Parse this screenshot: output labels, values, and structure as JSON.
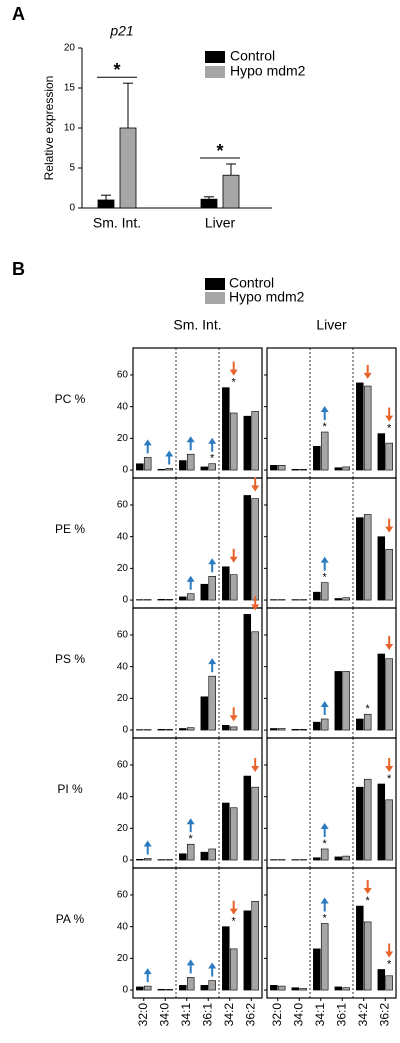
{
  "panel_labels": [
    "A",
    "B"
  ],
  "chart_data": [
    {
      "type": "bar",
      "title": "p21",
      "ylabel": "Relative expression",
      "categories": [
        "Sm. Int.",
        "Liver"
      ],
      "series": [
        {
          "name": "Control",
          "color": "#000000",
          "values": [
            1.0,
            1.1
          ],
          "errors": [
            0.6,
            0.3
          ]
        },
        {
          "name": "Hypo mdm2",
          "color": "#a6a6a6",
          "values": [
            10.0,
            4.1
          ],
          "errors": [
            5.6,
            1.4
          ]
        }
      ],
      "ylim": [
        0,
        20
      ],
      "yticks": [
        0,
        5,
        10,
        15,
        20
      ],
      "annotations": [
        {
          "text": "*",
          "category": "Sm. Int."
        },
        {
          "text": "*",
          "category": "Liver"
        }
      ]
    },
    {
      "type": "bar-grid",
      "categories": [
        "32:0",
        "34:0",
        "34:1",
        "36:1",
        "34:2",
        "36:2"
      ],
      "column_titles": [
        "Sm. Int.",
        "Liver"
      ],
      "series": [
        {
          "name": "Control",
          "color": "#000000"
        },
        {
          "name": "Hypo mdm2",
          "color": "#a6a6a6"
        }
      ],
      "ylim": [
        -5,
        77
      ],
      "yticks": [
        0,
        20,
        40,
        60
      ],
      "star": "*",
      "up_color": "#2b7bc0",
      "down_color": "#e8622a",
      "rows": [
        {
          "label": "PC %",
          "panels": [
            {
              "values": [
                [
                  4,
                  0.5,
                  6,
                  2,
                  52,
                  34
                ],
                [
                  8,
                  1,
                  10,
                  4,
                  36,
                  37
                ]
              ],
              "up": [
                "32:0",
                "34:0",
                "34:1",
                "36:1"
              ],
              "down": [
                "34:2"
              ],
              "stars": [
                "36:1",
                "34:2"
              ]
            },
            {
              "values": [
                [
                  3,
                  0.5,
                  15,
                  1.5,
                  55,
                  23
                ],
                [
                  3,
                  0.5,
                  24,
                  2,
                  53,
                  17
                ]
              ],
              "up": [
                "34:1"
              ],
              "down": [
                "34:2",
                "36:2"
              ],
              "stars": [
                "34:1",
                "36:2"
              ]
            }
          ]
        },
        {
          "label": "PE %",
          "panels": [
            {
              "values": [
                [
                  0.3,
                  0.5,
                  2,
                  10,
                  21,
                  66
                ],
                [
                  0.3,
                  0.5,
                  4,
                  15,
                  16,
                  64
                ]
              ],
              "up": [
                "34:1",
                "36:1"
              ],
              "down": [
                "34:2",
                "36:2"
              ],
              "stars": []
            },
            {
              "values": [
                [
                  0.3,
                  0.3,
                  5,
                  1,
                  52,
                  40
                ],
                [
                  0.3,
                  0.3,
                  11,
                  1.5,
                  54,
                  32
                ]
              ],
              "up": [
                "34:1"
              ],
              "down": [
                "36:2"
              ],
              "stars": [
                "34:1"
              ]
            }
          ]
        },
        {
          "label": "PS %",
          "panels": [
            {
              "values": [
                [
                  0.3,
                  0.5,
                  1,
                  21,
                  3,
                  73
                ],
                [
                  0.3,
                  0.5,
                  1.5,
                  34,
                  2,
                  62
                ]
              ],
              "up": [
                "36:1"
              ],
              "down": [
                "34:2",
                "36:2"
              ],
              "stars": []
            },
            {
              "values": [
                [
                  1,
                  0.5,
                  5,
                  37,
                  7,
                  48
                ],
                [
                  1,
                  0.5,
                  7,
                  37,
                  10,
                  45
                ]
              ],
              "up": [
                "34:1"
              ],
              "down": [
                "36:2"
              ],
              "stars": [
                "34:2"
              ]
            }
          ]
        },
        {
          "label": "PI %",
          "panels": [
            {
              "values": [
                [
                  0.5,
                  0.3,
                  4,
                  5,
                  36,
                  53
                ],
                [
                  1,
                  0.3,
                  10,
                  7,
                  33,
                  46
                ]
              ],
              "up": [
                "32:0",
                "34:1"
              ],
              "down": [
                "36:2"
              ],
              "stars": [
                "34:1"
              ]
            },
            {
              "values": [
                [
                  0.3,
                  0.3,
                  1.5,
                  2,
                  46,
                  48
                ],
                [
                  0.3,
                  0.3,
                  7,
                  2.5,
                  51,
                  38
                ]
              ],
              "up": [
                "34:1"
              ],
              "down": [
                "36:2"
              ],
              "stars": [
                "34:1",
                "36:2"
              ]
            }
          ]
        },
        {
          "label": "PA %",
          "panels": [
            {
              "values": [
                [
                  2,
                  0.5,
                  3,
                  3,
                  40,
                  50
                ],
                [
                  2.5,
                  0.5,
                  8,
                  6,
                  26,
                  56
                ]
              ],
              "up": [
                "32:0",
                "34:1",
                "36:1"
              ],
              "down": [
                "34:2"
              ],
              "stars": [
                "34:2"
              ]
            },
            {
              "values": [
                [
                  3,
                  1.5,
                  26,
                  2,
                  53,
                  13
                ],
                [
                  2.5,
                  1,
                  42,
                  1.5,
                  43,
                  9
                ]
              ],
              "up": [
                "34:1"
              ],
              "down": [
                "34:2",
                "36:2"
              ],
              "stars": [
                "34:1",
                "34:2",
                "36:2"
              ]
            }
          ]
        }
      ]
    }
  ]
}
